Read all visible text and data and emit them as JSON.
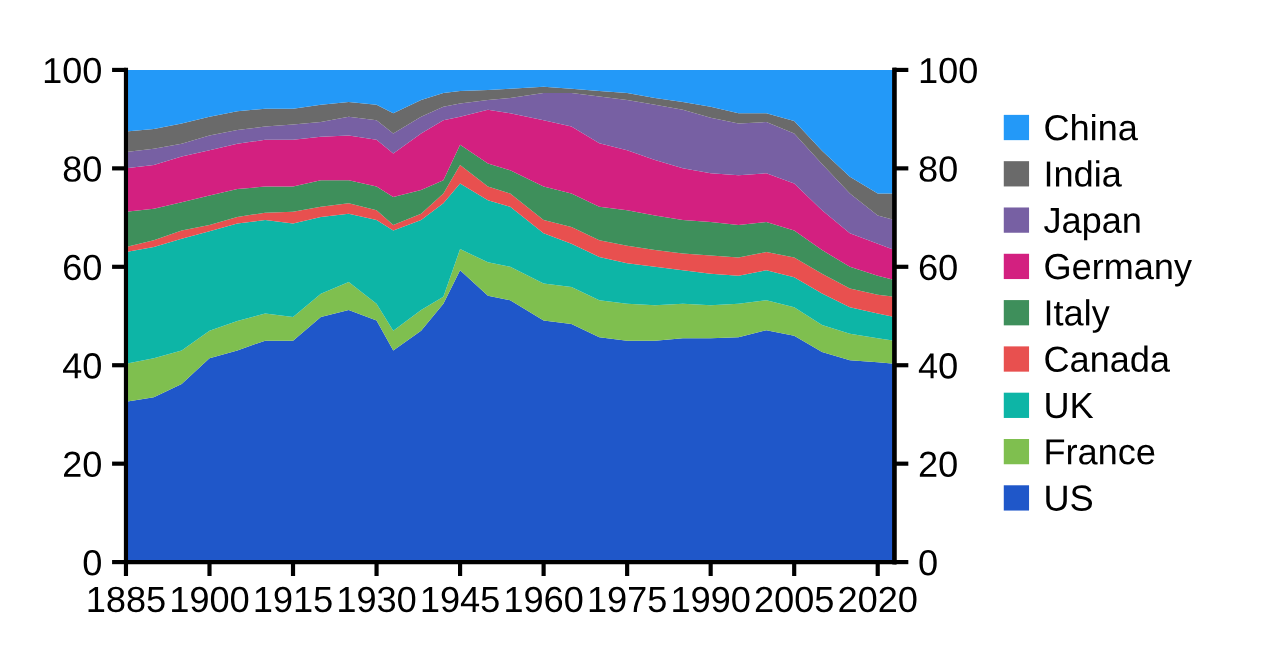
{
  "chart_data": {
    "type": "area",
    "stacked": true,
    "x": [
      1885,
      1890,
      1895,
      1900,
      1905,
      1910,
      1915,
      1920,
      1925,
      1930,
      1933,
      1938,
      1942,
      1945,
      1950,
      1954,
      1960,
      1965,
      1970,
      1975,
      1980,
      1985,
      1990,
      1995,
      2000,
      2005,
      2010,
      2015,
      2020,
      2023
    ],
    "series": [
      {
        "name": "US",
        "color": "#1f57c9",
        "values": [
          32.6,
          33.5,
          36.2,
          41.4,
          43.0,
          45.0,
          45.0,
          49.8,
          51.2,
          49.1,
          43.0,
          47.0,
          52.5,
          59.3,
          54.1,
          53.2,
          49.1,
          48.4,
          45.7,
          45.0,
          45.0,
          45.5,
          45.5,
          45.7,
          47.1,
          46.0,
          42.7,
          41.0,
          40.6,
          40.3
        ]
      },
      {
        "name": "France",
        "color": "#7fbf4f",
        "values": [
          7.7,
          7.9,
          6.8,
          5.6,
          6.0,
          5.5,
          4.8,
          4.7,
          5.7,
          3.4,
          4.0,
          4.2,
          1.4,
          4.3,
          6.8,
          6.8,
          7.5,
          7.5,
          7.5,
          7.5,
          7.2,
          7.0,
          6.7,
          6.8,
          6.1,
          5.8,
          5.5,
          5.4,
          4.9,
          4.7
        ]
      },
      {
        "name": "UK",
        "color": "#0db5a6",
        "values": [
          22.7,
          22.6,
          22.7,
          20.2,
          19.8,
          19.0,
          19.0,
          15.6,
          13.9,
          17.0,
          20.4,
          18.3,
          19.0,
          13.3,
          12.6,
          12.2,
          10.2,
          8.8,
          8.8,
          8.2,
          7.8,
          6.8,
          6.4,
          5.7,
          6.1,
          6.1,
          6.4,
          5.4,
          5.0,
          4.8
        ]
      },
      {
        "name": "Canada",
        "color": "#e8504f",
        "values": [
          1.0,
          1.4,
          1.7,
          1.3,
          1.3,
          1.5,
          2.4,
          2.1,
          2.1,
          2.0,
          1.1,
          1.3,
          2.0,
          3.8,
          2.8,
          2.7,
          2.7,
          3.4,
          3.4,
          3.6,
          3.4,
          3.4,
          3.7,
          3.7,
          3.7,
          4.0,
          4.0,
          3.8,
          3.8,
          4.1
        ]
      },
      {
        "name": "Italy",
        "color": "#3e8f5b",
        "values": [
          7.2,
          6.4,
          5.7,
          6.0,
          5.7,
          5.3,
          5.1,
          5.4,
          4.7,
          4.8,
          5.7,
          4.8,
          2.7,
          4.1,
          4.7,
          4.7,
          6.8,
          6.8,
          6.8,
          7.2,
          7.0,
          6.8,
          6.8,
          6.6,
          6.1,
          5.5,
          4.8,
          4.4,
          3.9,
          3.4
        ]
      },
      {
        "name": "Germany",
        "color": "#d32080",
        "values": [
          8.8,
          8.9,
          9.3,
          9.2,
          9.2,
          9.5,
          9.5,
          8.8,
          9.1,
          9.5,
          8.8,
          11.5,
          12.2,
          5.7,
          10.9,
          11.6,
          13.5,
          13.6,
          12.9,
          12.2,
          11.3,
          10.5,
          9.9,
          10.1,
          9.9,
          9.5,
          8.1,
          6.8,
          6.5,
          6.1
        ]
      },
      {
        "name": "Japan",
        "color": "#7760a3",
        "values": [
          3.3,
          3.3,
          2.6,
          3.0,
          2.8,
          2.7,
          3.1,
          3.0,
          3.8,
          4.0,
          4.1,
          3.4,
          2.7,
          2.7,
          2.0,
          3.1,
          5.5,
          6.8,
          9.5,
          10.2,
          11.2,
          11.9,
          11.3,
          10.5,
          10.4,
          10.2,
          9.4,
          8.1,
          5.7,
          6.1
        ]
      },
      {
        "name": "India",
        "color": "#6a6a6a",
        "values": [
          4.2,
          4.0,
          4.1,
          3.8,
          3.8,
          3.6,
          3.2,
          3.5,
          3.0,
          3.1,
          4.1,
          3.4,
          2.8,
          2.5,
          2.0,
          1.9,
          1.3,
          0.9,
          1.1,
          1.4,
          1.4,
          1.6,
          2.2,
          2.1,
          1.8,
          2.5,
          2.7,
          3.4,
          4.5,
          5.4
        ]
      },
      {
        "name": "China",
        "color": "#2399f8",
        "values": [
          12.5,
          12.0,
          10.9,
          9.5,
          8.4,
          7.9,
          7.9,
          7.1,
          6.5,
          7.1,
          8.8,
          6.1,
          4.7,
          4.3,
          4.1,
          3.8,
          3.4,
          3.8,
          4.3,
          4.7,
          5.7,
          6.5,
          7.5,
          8.8,
          8.8,
          10.4,
          16.4,
          21.7,
          25.1,
          25.1
        ]
      }
    ],
    "xlim": [
      1885,
      2023
    ],
    "xticks": [
      1885,
      1900,
      1915,
      1930,
      1945,
      1960,
      1975,
      1990,
      2005,
      2020
    ],
    "ylim": [
      0,
      100
    ],
    "yticks": [
      0,
      20,
      40,
      60,
      80,
      100
    ],
    "y2lim": [
      0,
      100
    ],
    "y2ticks": [
      0,
      20,
      40,
      60,
      80,
      100
    ],
    "legend": "right",
    "grid": false
  }
}
